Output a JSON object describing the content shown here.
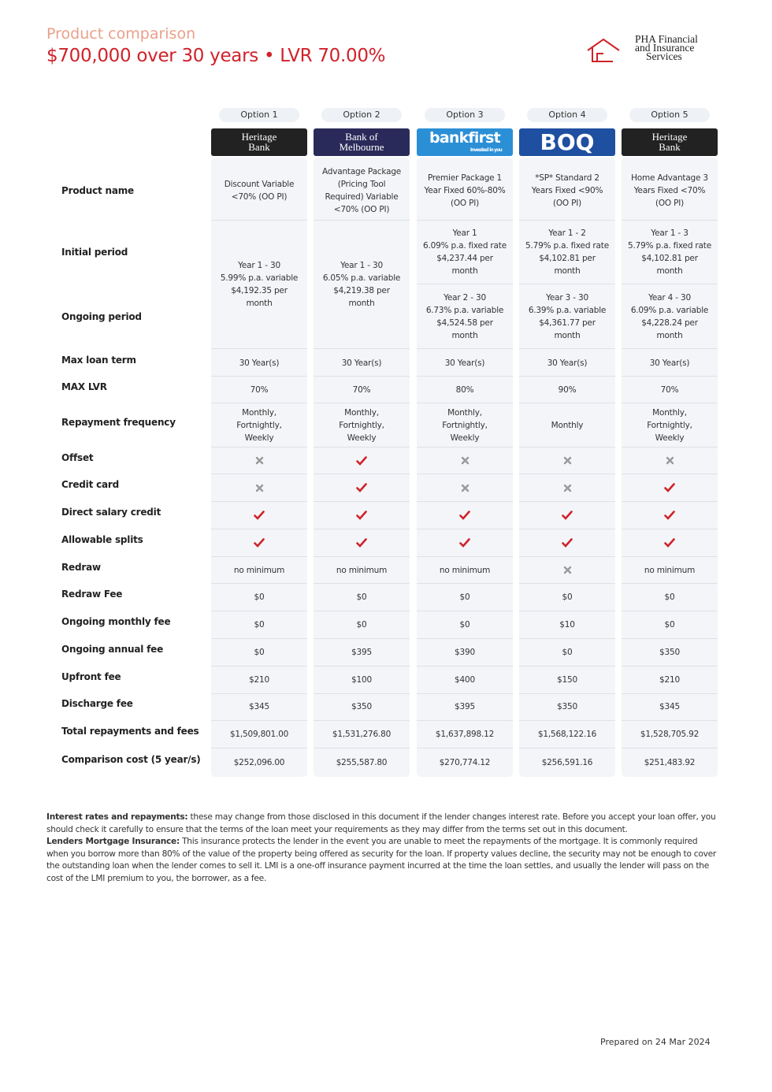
{
  "header": {
    "subtitle": "Product comparison",
    "title": "$700,000 over 30 years • LVR 70.00%"
  },
  "brand": [
    "PHA Financial",
    "and Insurance",
    "Services"
  ],
  "options": [
    {
      "label": "Option 1",
      "logo": [
        "Heritage",
        "Bank"
      ]
    },
    {
      "label": "Option 2",
      "logo": [
        "Bank of",
        "Melbourne"
      ]
    },
    {
      "label": "Option 3",
      "logo": [
        "bankfirst",
        "Invested in you"
      ]
    },
    {
      "label": "Option 4",
      "logo": [
        "BOQ"
      ]
    },
    {
      "label": "Option 5",
      "logo": [
        "Heritage",
        "Bank"
      ]
    }
  ],
  "product_name": {
    "label": "Product name",
    "values": [
      [
        "Discount Variable",
        "<70% (OO PI)"
      ],
      [
        "Advantage Package",
        "(Pricing Tool",
        "Required) Variable",
        "<70% (OO PI)"
      ],
      [
        "Premier Package 1",
        "Year Fixed 60%-80%",
        "(OO PI)"
      ],
      [
        "*SP* Standard 2",
        "Years Fixed <90%",
        "(OO PI)"
      ],
      [
        "Home Advantage 3",
        "Years Fixed <70%",
        "(OO PI)"
      ]
    ]
  },
  "periods": {
    "labels": [
      "Initial period",
      "Ongoing period"
    ],
    "values": [
      [
        [
          "Year 1 - 30",
          "5.99% p.a. variable",
          "$4,192.35 per",
          "month"
        ]
      ],
      [
        [
          "Year 1 - 30",
          "6.05% p.a. variable",
          "$4,219.38 per",
          "month"
        ]
      ],
      [
        [
          "Year 1",
          "6.09% p.a. fixed rate",
          "$4,237.44 per",
          "month"
        ],
        [
          "Year 2 - 30",
          "6.73% p.a. variable",
          "$4,524.58 per",
          "month"
        ]
      ],
      [
        [
          "Year 1 - 2",
          "5.79% p.a. fixed rate",
          "$4,102.81 per",
          "month"
        ],
        [
          "Year 3 - 30",
          "6.39% p.a. variable",
          "$4,361.77 per",
          "month"
        ]
      ],
      [
        [
          "Year 1 - 3",
          "5.79% p.a. fixed rate",
          "$4,102.81 per",
          "month"
        ],
        [
          "Year 4 - 30",
          "6.09% p.a. variable",
          "$4,228.24 per",
          "month"
        ]
      ]
    ]
  },
  "rows": [
    {
      "label": "Max loan term",
      "values": [
        "30 Year(s)",
        "30 Year(s)",
        "30 Year(s)",
        "30 Year(s)",
        "30 Year(s)"
      ]
    },
    {
      "label": "MAX LVR",
      "values": [
        "70%",
        "70%",
        "80%",
        "90%",
        "70%"
      ]
    },
    {
      "label": "Repayment frequency",
      "values": [
        [
          "Monthly,",
          "Fortnightly,",
          "Weekly"
        ],
        [
          "Monthly,",
          "Fortnightly,",
          "Weekly"
        ],
        [
          "Monthly,",
          "Fortnightly,",
          "Weekly"
        ],
        [
          "Monthly"
        ],
        [
          "Monthly,",
          "Fortnightly,",
          "Weekly"
        ]
      ]
    },
    {
      "label": "Offset",
      "values": [
        false,
        true,
        false,
        false,
        false
      ]
    },
    {
      "label": "Credit card",
      "values": [
        false,
        true,
        false,
        false,
        true
      ]
    },
    {
      "label": "Direct salary credit",
      "values": [
        true,
        true,
        true,
        true,
        true
      ]
    },
    {
      "label": "Allowable splits",
      "values": [
        true,
        true,
        true,
        true,
        true
      ]
    },
    {
      "label": "Redraw",
      "values": [
        "no minimum",
        "no minimum",
        "no minimum",
        false,
        "no minimum"
      ]
    },
    {
      "label": "Redraw Fee",
      "values": [
        "$0",
        "$0",
        "$0",
        "$0",
        "$0"
      ]
    },
    {
      "label": "Ongoing monthly fee",
      "values": [
        "$0",
        "$0",
        "$0",
        "$10",
        "$0"
      ]
    },
    {
      "label": "Ongoing annual fee",
      "values": [
        "$0",
        "$395",
        "$390",
        "$0",
        "$350"
      ]
    },
    {
      "label": "Upfront fee",
      "values": [
        "$210",
        "$100",
        "$400",
        "$150",
        "$210"
      ]
    },
    {
      "label": "Discharge fee",
      "values": [
        "$345",
        "$350",
        "$395",
        "$350",
        "$345"
      ]
    },
    {
      "label": "Total repayments and fees",
      "values": [
        "$1,509,801.00",
        "$1,531,276.80",
        "$1,637,898.12",
        "$1,568,122.16",
        "$1,528,705.92"
      ]
    },
    {
      "label": "Comparison cost (5 year/s)",
      "values": [
        "$252,096.00",
        "$255,587.80",
        "$270,774.12",
        "$256,591.16",
        "$251,483.92"
      ]
    }
  ],
  "notes": [
    {
      "lead": "Interest rates and repayments:",
      "text": " these may change from those disclosed in this document if the lender changes interest rate. Before you accept your loan offer, you should check it carefully to ensure that the terms of the loan meet your requirements as they may differ from the terms set out in this document."
    },
    {
      "lead": "Lenders Mortgage Insurance:",
      "text": " This insurance protects the lender in the event you are unable to meet the repayments of the mortgage. It is commonly required when you borrow more than 80% of the value of the property being offered as security for the loan. If property values decline, the security may not be enough to cover the outstanding loan when the lender comes to sell it. LMI is a one-off insurance payment incurred at the time the loan settles, and usually the lender will pass on the cost of the LMI premium to you, the borrower, as a fee."
    }
  ],
  "prepared": "Prepared on 24 Mar 2024"
}
